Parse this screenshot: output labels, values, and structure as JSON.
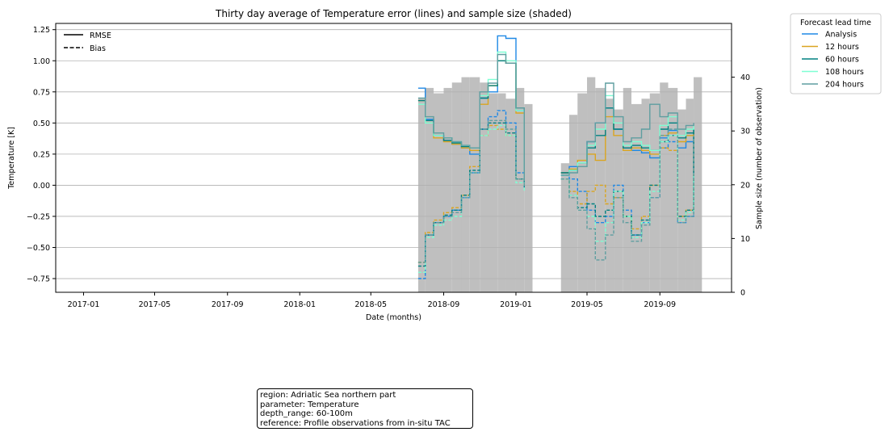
{
  "chart_data": {
    "type": "line",
    "title": "Thirty day average of Temperature error (lines) and sample size (shaded)",
    "xlabel": "Date (months)",
    "ylabel": "Temperature [K]",
    "y2label": "Sample size (number of observation)",
    "xlim": [
      "2016-11-15",
      "2019-12-31"
    ],
    "ylim": [
      -0.86,
      1.3
    ],
    "y2lim": [
      0,
      50
    ],
    "grid": "horizontal",
    "x_ticks": [
      "2017-01",
      "2017-05",
      "2017-09",
      "2018-01",
      "2018-05",
      "2018-09",
      "2019-01",
      "2019-05",
      "2019-09"
    ],
    "y_ticks": [
      "1.25",
      "1.00",
      "0.75",
      "0.50",
      "0.25",
      "0.00",
      "−0.25",
      "−0.50",
      "−0.75"
    ],
    "y2_ticks": [
      "0",
      "10",
      "20",
      "30",
      "40"
    ],
    "style_legend": {
      "placement": "upper-left",
      "entries": [
        {
          "label": "RMSE",
          "style": "solid"
        },
        {
          "label": "Bias",
          "style": "dashed"
        }
      ]
    },
    "series_legend": {
      "title": "Forecast lead time",
      "placement": "outside-right",
      "entries": [
        "Analysis",
        "12 hours",
        "60 hours",
        "108 hours",
        "204 hours"
      ]
    },
    "colors": {
      "Analysis": "#1e88e5",
      "12 hours": "#daa520",
      "60 hours": "#008080",
      "108 hours": "#7fffd4",
      "204 hours": "#5f9ea0",
      "sample": "#bfbfbf"
    },
    "sample_size": {
      "x": [
        "2018-07-20",
        "2018-08-01",
        "2018-08-15",
        "2018-09-01",
        "2018-09-15",
        "2018-10-01",
        "2018-10-15",
        "2018-11-01",
        "2018-11-15",
        "2018-12-01",
        "2018-12-15",
        "2019-01-01",
        "2019-01-15",
        "2019-03-18",
        "2019-04-01",
        "2019-04-15",
        "2019-05-01",
        "2019-05-15",
        "2019-06-01",
        "2019-06-15",
        "2019-07-01",
        "2019-07-15",
        "2019-08-01",
        "2019-08-15",
        "2019-09-01",
        "2019-09-15",
        "2019-10-01",
        "2019-10-15",
        "2019-10-28"
      ],
      "values": [
        36,
        38,
        37,
        38,
        39,
        40,
        40,
        39,
        37,
        37,
        36,
        38,
        35,
        24,
        33,
        37,
        40,
        38,
        36,
        34,
        38,
        35,
        36,
        37,
        39,
        38,
        34,
        36,
        40
      ]
    },
    "series": [
      {
        "name": "Analysis",
        "metric": "RMSE",
        "x": [
          "2018-07-20",
          "2018-08-01",
          "2018-08-15",
          "2018-09-01",
          "2018-09-15",
          "2018-10-01",
          "2018-10-15",
          "2018-11-01",
          "2018-11-15",
          "2018-12-01",
          "2018-12-15",
          "2019-01-01",
          "2019-01-15",
          "2019-03-18",
          "2019-04-01",
          "2019-04-15",
          "2019-05-01",
          "2019-05-15",
          "2019-06-01",
          "2019-06-15",
          "2019-07-01",
          "2019-07-15",
          "2019-08-01",
          "2019-08-15",
          "2019-09-01",
          "2019-09-15",
          "2019-10-01",
          "2019-10-15",
          "2019-10-28"
        ],
        "values": [
          0.78,
          0.53,
          0.4,
          0.36,
          0.33,
          0.3,
          0.25,
          0.7,
          0.75,
          1.2,
          1.18,
          0.6,
          0.08,
          0.1,
          0.15,
          0.18,
          0.35,
          0.5,
          0.62,
          0.45,
          0.3,
          0.28,
          0.26,
          0.22,
          0.38,
          0.44,
          0.3,
          0.35,
          0.45
        ]
      },
      {
        "name": "Analysis",
        "metric": "Bias",
        "x": [
          "2018-07-20",
          "2018-08-01",
          "2018-08-15",
          "2018-09-01",
          "2018-09-15",
          "2018-10-01",
          "2018-10-15",
          "2018-11-01",
          "2018-11-15",
          "2018-12-01",
          "2018-12-15",
          "2019-01-01",
          "2019-01-15",
          "2019-03-18",
          "2019-04-01",
          "2019-04-15",
          "2019-05-01",
          "2019-05-15",
          "2019-06-01",
          "2019-06-15",
          "2019-07-01",
          "2019-07-15",
          "2019-08-01",
          "2019-08-15",
          "2019-09-01",
          "2019-09-15",
          "2019-10-01",
          "2019-10-15",
          "2019-10-28"
        ],
        "values": [
          -0.75,
          -0.4,
          -0.3,
          -0.25,
          -0.2,
          -0.1,
          0.1,
          0.45,
          0.55,
          0.6,
          0.5,
          0.1,
          -0.02,
          0.08,
          0.05,
          -0.05,
          -0.2,
          -0.3,
          -0.25,
          0.0,
          -0.2,
          -0.4,
          -0.3,
          -0.1,
          0.3,
          0.35,
          -0.3,
          -0.25,
          0.45
        ]
      },
      {
        "name": "12 hours",
        "metric": "RMSE",
        "x": [
          "2018-07-20",
          "2018-08-01",
          "2018-08-15",
          "2018-09-01",
          "2018-09-15",
          "2018-10-01",
          "2018-10-15",
          "2018-11-01",
          "2018-11-15",
          "2018-12-01",
          "2018-12-15",
          "2019-01-01",
          "2019-01-15",
          "2019-03-18",
          "2019-04-01",
          "2019-04-15",
          "2019-05-01",
          "2019-05-15",
          "2019-06-01",
          "2019-06-15",
          "2019-07-01",
          "2019-07-15",
          "2019-08-01",
          "2019-08-15",
          "2019-09-01",
          "2019-09-15",
          "2019-10-01",
          "2019-10-15",
          "2019-10-28"
        ],
        "values": [
          0.68,
          0.5,
          0.38,
          0.35,
          0.33,
          0.3,
          0.28,
          0.65,
          0.8,
          1.0,
          0.98,
          0.58,
          0.1,
          0.1,
          0.13,
          0.2,
          0.25,
          0.2,
          0.55,
          0.4,
          0.28,
          0.3,
          0.28,
          0.25,
          0.4,
          0.42,
          0.35,
          0.4,
          0.44
        ]
      },
      {
        "name": "12 hours",
        "metric": "Bias",
        "x": [
          "2018-07-20",
          "2018-08-01",
          "2018-08-15",
          "2018-09-01",
          "2018-09-15",
          "2018-10-01",
          "2018-10-15",
          "2018-11-01",
          "2018-11-15",
          "2018-12-01",
          "2018-12-15",
          "2019-01-01",
          "2019-01-15",
          "2019-03-18",
          "2019-04-01",
          "2019-04-15",
          "2019-05-01",
          "2019-05-15",
          "2019-06-01",
          "2019-06-15",
          "2019-07-01",
          "2019-07-15",
          "2019-08-01",
          "2019-08-15",
          "2019-09-01",
          "2019-09-15",
          "2019-10-01",
          "2019-10-15",
          "2019-10-28"
        ],
        "values": [
          -0.62,
          -0.38,
          -0.28,
          -0.22,
          -0.18,
          -0.08,
          0.15,
          0.4,
          0.48,
          0.45,
          0.4,
          0.05,
          0.0,
          0.05,
          -0.05,
          -0.15,
          -0.05,
          0.0,
          -0.15,
          -0.1,
          -0.25,
          -0.35,
          -0.25,
          0.0,
          0.3,
          0.28,
          -0.25,
          -0.2,
          0.4
        ]
      },
      {
        "name": "60 hours",
        "metric": "RMSE",
        "x": [
          "2018-07-20",
          "2018-08-01",
          "2018-08-15",
          "2018-09-01",
          "2018-09-15",
          "2018-10-01",
          "2018-10-15",
          "2018-11-01",
          "2018-11-15",
          "2018-12-01",
          "2018-12-15",
          "2019-01-01",
          "2019-01-15",
          "2019-03-18",
          "2019-04-01",
          "2019-04-15",
          "2019-05-01",
          "2019-05-15",
          "2019-06-01",
          "2019-06-15",
          "2019-07-01",
          "2019-07-15",
          "2019-08-01",
          "2019-08-15",
          "2019-09-01",
          "2019-09-15",
          "2019-10-01",
          "2019-10-15",
          "2019-10-28"
        ],
        "values": [
          0.68,
          0.52,
          0.4,
          0.36,
          0.34,
          0.31,
          0.3,
          0.7,
          0.8,
          1.0,
          0.98,
          0.62,
          0.08,
          0.1,
          0.12,
          0.18,
          0.3,
          0.4,
          0.62,
          0.45,
          0.3,
          0.32,
          0.3,
          0.28,
          0.45,
          0.5,
          0.38,
          0.42,
          0.45
        ]
      },
      {
        "name": "60 hours",
        "metric": "Bias",
        "x": [
          "2018-07-20",
          "2018-08-01",
          "2018-08-15",
          "2018-09-01",
          "2018-09-15",
          "2018-10-01",
          "2018-10-15",
          "2018-11-01",
          "2018-11-15",
          "2018-12-01",
          "2018-12-15",
          "2019-01-01",
          "2019-01-15",
          "2019-03-18",
          "2019-04-01",
          "2019-04-15",
          "2019-05-01",
          "2019-05-15",
          "2019-06-01",
          "2019-06-15",
          "2019-07-01",
          "2019-07-15",
          "2019-08-01",
          "2019-08-15",
          "2019-09-01",
          "2019-09-15",
          "2019-10-01",
          "2019-10-15",
          "2019-10-28"
        ],
        "values": [
          -0.65,
          -0.4,
          -0.3,
          -0.24,
          -0.2,
          -0.08,
          0.12,
          0.45,
          0.5,
          0.5,
          0.42,
          0.05,
          -0.02,
          0.05,
          -0.08,
          -0.18,
          -0.15,
          -0.25,
          -0.2,
          -0.05,
          -0.25,
          -0.4,
          -0.28,
          0.0,
          0.35,
          0.4,
          -0.25,
          -0.2,
          0.42
        ]
      },
      {
        "name": "108 hours",
        "metric": "RMSE",
        "x": [
          "2018-07-20",
          "2018-08-01",
          "2018-08-15",
          "2018-09-01",
          "2018-09-15",
          "2018-10-01",
          "2018-10-15",
          "2018-11-01",
          "2018-11-15",
          "2018-12-01",
          "2018-12-15",
          "2019-01-01",
          "2019-01-15",
          "2019-03-18",
          "2019-04-01",
          "2019-04-15",
          "2019-05-01",
          "2019-05-15",
          "2019-06-01",
          "2019-06-15",
          "2019-07-01",
          "2019-07-15",
          "2019-08-01",
          "2019-08-15",
          "2019-09-01",
          "2019-09-15",
          "2019-10-01",
          "2019-10-15",
          "2019-10-28"
        ],
        "values": [
          0.65,
          0.5,
          0.4,
          0.38,
          0.35,
          0.32,
          0.3,
          0.72,
          0.85,
          1.07,
          1.0,
          0.6,
          0.05,
          0.08,
          0.12,
          0.18,
          0.32,
          0.45,
          0.72,
          0.5,
          0.32,
          0.35,
          0.32,
          0.28,
          0.48,
          0.55,
          0.4,
          0.45,
          0.48
        ]
      },
      {
        "name": "108 hours",
        "metric": "Bias",
        "x": [
          "2018-07-20",
          "2018-08-01",
          "2018-08-15",
          "2018-09-01",
          "2018-09-15",
          "2018-10-01",
          "2018-10-15",
          "2018-11-01",
          "2018-11-15",
          "2018-12-01",
          "2018-12-15",
          "2019-01-01",
          "2019-01-15",
          "2019-03-18",
          "2019-04-01",
          "2019-04-15",
          "2019-05-01",
          "2019-05-15",
          "2019-06-01",
          "2019-06-15",
          "2019-07-01",
          "2019-07-15",
          "2019-08-01",
          "2019-08-15",
          "2019-09-01",
          "2019-09-15",
          "2019-10-01",
          "2019-10-15",
          "2019-10-28"
        ],
        "values": [
          -0.7,
          -0.42,
          -0.32,
          -0.28,
          -0.25,
          -0.1,
          0.1,
          0.4,
          0.45,
          0.48,
          0.4,
          0.02,
          -0.05,
          0.05,
          -0.08,
          -0.2,
          -0.25,
          -0.45,
          -0.3,
          -0.05,
          -0.25,
          -0.42,
          -0.3,
          -0.05,
          0.35,
          0.4,
          -0.28,
          -0.22,
          0.1
        ]
      },
      {
        "name": "204 hours",
        "metric": "RMSE",
        "x": [
          "2018-07-20",
          "2018-08-01",
          "2018-08-15",
          "2018-09-01",
          "2018-09-15",
          "2018-10-01",
          "2018-10-15",
          "2018-11-01",
          "2018-11-15",
          "2018-12-01",
          "2018-12-15",
          "2019-01-01",
          "2019-01-15",
          "2019-03-18",
          "2019-04-01",
          "2019-04-15",
          "2019-05-01",
          "2019-05-15",
          "2019-06-01",
          "2019-06-15",
          "2019-07-01",
          "2019-07-15",
          "2019-08-01",
          "2019-08-15",
          "2019-09-01",
          "2019-09-15",
          "2019-10-01",
          "2019-10-15",
          "2019-10-28"
        ],
        "values": [
          0.7,
          0.55,
          0.42,
          0.38,
          0.35,
          0.32,
          0.3,
          0.75,
          0.82,
          1.05,
          0.98,
          0.62,
          0.05,
          0.08,
          0.1,
          0.15,
          0.35,
          0.5,
          0.82,
          0.55,
          0.35,
          0.38,
          0.45,
          0.65,
          0.55,
          0.58,
          0.45,
          0.48,
          0.5
        ]
      },
      {
        "name": "204 hours",
        "metric": "Bias",
        "x": [
          "2018-07-20",
          "2018-08-01",
          "2018-08-15",
          "2018-09-01",
          "2018-09-15",
          "2018-10-01",
          "2018-10-15",
          "2018-11-01",
          "2018-11-15",
          "2018-12-01",
          "2018-12-15",
          "2019-01-01",
          "2019-01-15",
          "2019-03-18",
          "2019-04-01",
          "2019-04-15",
          "2019-05-01",
          "2019-05-15",
          "2019-06-01",
          "2019-06-15",
          "2019-07-01",
          "2019-07-15",
          "2019-08-01",
          "2019-08-15",
          "2019-09-01",
          "2019-09-15",
          "2019-10-01",
          "2019-10-15",
          "2019-10-28"
        ],
        "values": [
          -0.62,
          -0.4,
          -0.3,
          -0.25,
          -0.22,
          -0.1,
          0.1,
          0.45,
          0.52,
          0.52,
          0.45,
          0.05,
          -0.02,
          0.05,
          -0.1,
          -0.2,
          -0.35,
          -0.6,
          -0.4,
          -0.1,
          -0.3,
          -0.45,
          -0.32,
          -0.1,
          0.4,
          0.45,
          -0.3,
          -0.25,
          0.4
        ]
      }
    ]
  },
  "info_box": {
    "region": "region: Adriatic Sea northern part",
    "parameter": "parameter: Temperature",
    "depth_range": "depth_range: 60-100m",
    "reference": "reference: Profile observations from in-situ TAC"
  }
}
